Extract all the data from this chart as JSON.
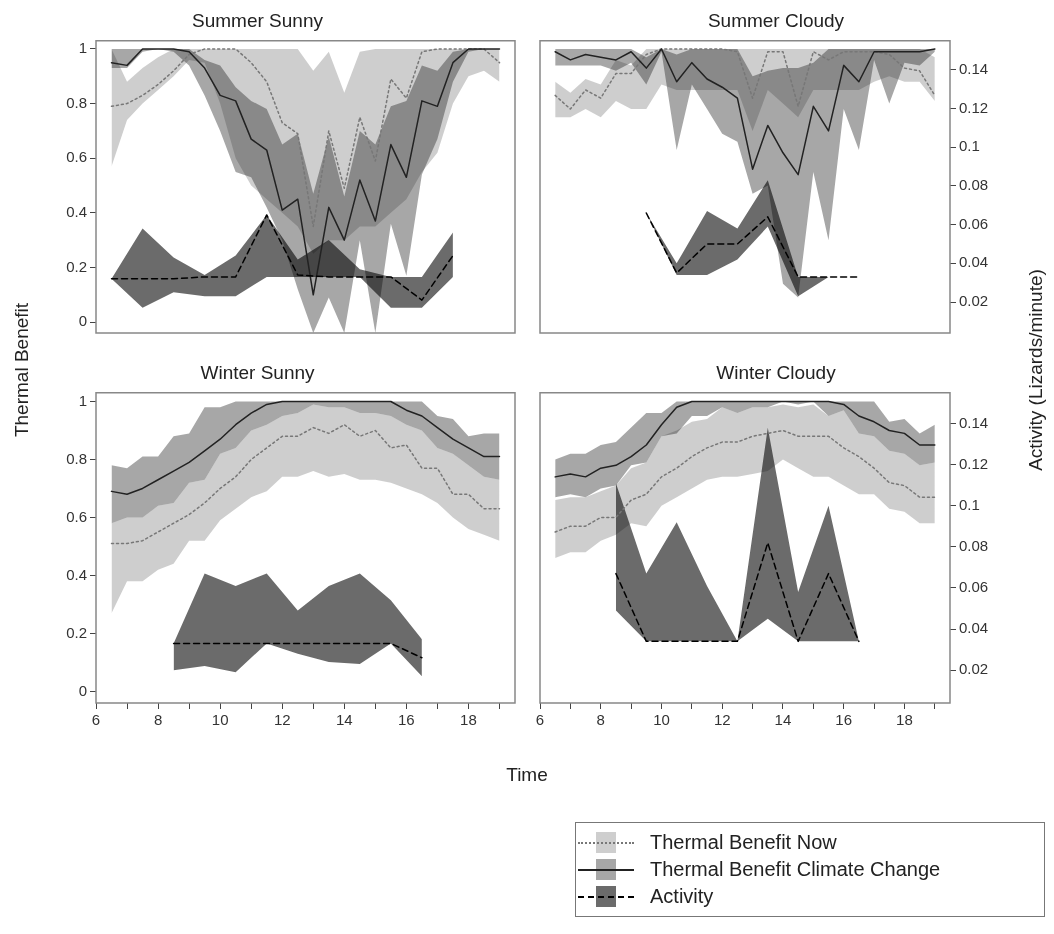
{
  "chart_data": [
    {
      "type": "line",
      "title": "Summer Sunny",
      "ylabel": "Thermal Benefit",
      "tick_labels": "y",
      "x": [
        6.5,
        7,
        7.5,
        8,
        8.5,
        9,
        9.5,
        10,
        10.5,
        11,
        11.5,
        12,
        12.5,
        13,
        13.5,
        14,
        14.5,
        15,
        15.5,
        16,
        16.5,
        17,
        17.5,
        18,
        18.5,
        19
      ],
      "xlim": [
        6,
        19.5
      ],
      "ylim": [
        -0.04,
        1.03
      ],
      "yticks": [
        0,
        0.2,
        0.4,
        0.6,
        0.8,
        1
      ],
      "y2lim": [
        0.004,
        0.155
      ],
      "series": [
        {
          "color": "#777777",
          "line_style": "dotted",
          "values": [
            0.79,
            0.8,
            0.83,
            0.87,
            0.92,
            0.98,
            1,
            1,
            1,
            0.95,
            0.88,
            0.73,
            0.69,
            0.35,
            0.7,
            0.49,
            0.75,
            0.59,
            0.89,
            0.82,
            0.99,
            1,
            1,
            1,
            1,
            0.95
          ],
          "lower": [
            0.57,
            0.74,
            0.8,
            0.85,
            0.9,
            0.96,
            0.95,
            0.8,
            0.6,
            0.5,
            0.45,
            0.4,
            0.35,
            0.25,
            0.3,
            0.3,
            0.35,
            0.35,
            0.4,
            0.45,
            0.55,
            0.62,
            0.8,
            0.9,
            0.92,
            0.88
          ],
          "upper": [
            1,
            0.88,
            0.93,
            0.97,
            1,
            1,
            1,
            1,
            1,
            1,
            1,
            1,
            1,
            0.92,
            0.99,
            0.84,
            0.99,
            1,
            1,
            1,
            1,
            1,
            1,
            1,
            1,
            1
          ]
        },
        {
          "color": "#222222",
          "line_style": "solid",
          "values": [
            0.95,
            0.94,
            1,
            1,
            1,
            0.99,
            0.93,
            0.83,
            0.81,
            0.67,
            0.63,
            0.41,
            0.45,
            0.1,
            0.42,
            0.3,
            0.52,
            0.37,
            0.65,
            0.53,
            0.81,
            0.79,
            0.95,
            1,
            1,
            1
          ],
          "lower": [
            0.93,
            0.93,
            0.99,
            1,
            0.99,
            0.94,
            0.83,
            0.7,
            0.55,
            0.53,
            0.42,
            0.3,
            0.12,
            -0.04,
            0.09,
            -0.04,
            0.3,
            -0.04,
            0.36,
            0.17,
            0.54,
            0.67,
            0.88,
            0.99,
            1,
            1
          ],
          "upper": [
            1,
            1,
            1,
            1,
            1,
            1,
            0.96,
            0.94,
            0.86,
            0.81,
            0.78,
            0.65,
            0.69,
            0.47,
            0.68,
            0.46,
            0.7,
            0.65,
            0.79,
            0.81,
            0.94,
            0.92,
            0.99,
            1,
            1,
            1
          ]
        },
        {
          "color": "#000000",
          "line_style": "dashed",
          "axis": "y2",
          "x": [
            6.5,
            7.5,
            8.5,
            9.5,
            10.5,
            11.5,
            12.5,
            13.5,
            14.5,
            15.5,
            16.5,
            17.5
          ],
          "values": [
            0.032,
            0.032,
            0.032,
            0.033,
            0.033,
            0.065,
            0.034,
            0.033,
            0.033,
            0.033,
            0.021,
            0.044
          ],
          "lower": [
            0.032,
            0.017,
            0.025,
            0.023,
            0.023,
            0.033,
            0.033,
            0.033,
            0.033,
            0.017,
            0.017,
            0.033
          ],
          "upper": [
            0.032,
            0.058,
            0.043,
            0.034,
            0.044,
            0.065,
            0.042,
            0.052,
            0.037,
            0.033,
            0.033,
            0.056
          ]
        }
      ]
    },
    {
      "type": "line",
      "title": "Summer Cloudy",
      "y2label": "Activity (Lizards/minute)",
      "tick_labels": "y2",
      "x": [
        6.5,
        7,
        7.5,
        8,
        8.5,
        9,
        9.5,
        10,
        10.5,
        11,
        11.5,
        12,
        12.5,
        13,
        13.5,
        14,
        14.5,
        15,
        15.5,
        16,
        16.5,
        17,
        17.5,
        18,
        18.5,
        19
      ],
      "xlim": [
        6,
        19.5
      ],
      "ylim": [
        -0.04,
        1.03
      ],
      "y2lim": [
        0.004,
        0.155
      ],
      "y2ticks": [
        0.02,
        0.04,
        0.06,
        0.08,
        0.1,
        0.12,
        0.14
      ],
      "series": [
        {
          "color": "#777777",
          "line_style": "dotted",
          "values": [
            0.83,
            0.78,
            0.85,
            0.82,
            0.91,
            0.91,
            0.98,
            1,
            1,
            1,
            1,
            1,
            0.99,
            0.82,
            0.99,
            0.99,
            0.79,
            0.99,
            0.96,
            0.99,
            0.99,
            0.99,
            0.98,
            0.93,
            0.92,
            0.83
          ],
          "lower": [
            0.75,
            0.75,
            0.78,
            0.75,
            0.81,
            0.78,
            0.78,
            0.87,
            0.85,
            0.85,
            0.85,
            0.85,
            0.85,
            0.7,
            0.85,
            0.8,
            0.75,
            0.85,
            0.85,
            0.85,
            0.85,
            0.88,
            0.9,
            0.88,
            0.88,
            0.81
          ],
          "upper": [
            0.88,
            0.84,
            0.89,
            0.87,
            0.96,
            0.94,
            1,
            1,
            1,
            1,
            1,
            1,
            1,
            1,
            1,
            1,
            1,
            1,
            1,
            1,
            1,
            1,
            1,
            1,
            1,
            0.97
          ]
        },
        {
          "color": "#222222",
          "line_style": "solid",
          "values": [
            0.99,
            0.96,
            0.98,
            0.97,
            0.96,
            0.99,
            0.93,
            1,
            0.88,
            0.95,
            0.89,
            0.86,
            0.82,
            0.56,
            0.72,
            0.62,
            0.54,
            0.79,
            0.7,
            0.94,
            0.88,
            0.99,
            0.99,
            0.99,
            0.99,
            1
          ],
          "lower": [
            0.94,
            0.94,
            0.94,
            0.94,
            0.92,
            0.95,
            0.87,
            0.99,
            0.63,
            0.87,
            0.78,
            0.69,
            0.66,
            0.47,
            0.5,
            0.14,
            0.09,
            0.55,
            0.3,
            0.78,
            0.63,
            0.96,
            0.8,
            0.95,
            0.94,
            0.99
          ],
          "upper": [
            1,
            1,
            1,
            1,
            1,
            1,
            0.97,
            1,
            0.98,
            1,
            1,
            1,
            1,
            0.9,
            0.92,
            0.93,
            0.93,
            0.95,
            1,
            1,
            1,
            1,
            1,
            1,
            1,
            1
          ]
        },
        {
          "color": "#000000",
          "line_style": "dashed",
          "axis": "y2",
          "x": [
            9.5,
            10.5,
            11.5,
            12.5,
            13.5,
            14.5,
            15.5,
            16.5
          ],
          "values": [
            0.066,
            0.035,
            0.05,
            0.05,
            0.064,
            0.033,
            0.033,
            0.033
          ],
          "lower": [
            0.066,
            0.034,
            0.034,
            0.042,
            0.059,
            0.023,
            0.033,
            0.033
          ],
          "upper": [
            0.066,
            0.04,
            0.067,
            0.058,
            0.083,
            0.033,
            0.033,
            0.033
          ]
        }
      ]
    },
    {
      "type": "line",
      "title": "Winter Sunny",
      "xlabel": "Time",
      "tick_labels": "xy",
      "x": [
        6.5,
        7,
        7.5,
        8,
        8.5,
        9,
        9.5,
        10,
        10.5,
        11,
        11.5,
        12,
        12.5,
        13,
        13.5,
        14,
        14.5,
        15,
        15.5,
        16,
        16.5,
        17,
        17.5,
        18,
        18.5,
        19
      ],
      "xlim": [
        6,
        19.5
      ],
      "xticks": [
        6,
        {
          "value": 7,
          "label": null
        },
        8,
        {
          "value": 9,
          "label": null
        },
        10,
        {
          "value": 11,
          "label": null
        },
        12,
        {
          "value": 13,
          "label": null
        },
        14,
        {
          "value": 15,
          "label": null
        },
        16,
        {
          "value": 17,
          "label": null
        },
        18,
        {
          "value": 19,
          "label": null
        }
      ],
      "ylim": [
        -0.04,
        1.03
      ],
      "yticks": [
        0,
        0.2,
        0.4,
        0.6,
        0.8,
        1
      ],
      "y2lim": [
        0.004,
        0.155
      ],
      "series": [
        {
          "color": "#777777",
          "line_style": "dotted",
          "values": [
            0.51,
            0.51,
            0.52,
            0.55,
            0.58,
            0.61,
            0.65,
            0.7,
            0.74,
            0.8,
            0.84,
            0.88,
            0.88,
            0.91,
            0.89,
            0.92,
            0.88,
            0.9,
            0.84,
            0.85,
            0.77,
            0.77,
            0.68,
            0.68,
            0.63,
            0.63
          ],
          "lower": [
            0.27,
            0.38,
            0.38,
            0.42,
            0.44,
            0.52,
            0.52,
            0.59,
            0.63,
            0.67,
            0.69,
            0.74,
            0.74,
            0.76,
            0.74,
            0.75,
            0.73,
            0.73,
            0.72,
            0.7,
            0.68,
            0.65,
            0.6,
            0.56,
            0.54,
            0.52
          ],
          "upper": [
            0.58,
            0.6,
            0.6,
            0.64,
            0.65,
            0.72,
            0.73,
            0.82,
            0.84,
            0.9,
            0.92,
            0.95,
            0.96,
            0.99,
            0.98,
            0.98,
            0.96,
            0.96,
            0.95,
            0.92,
            0.9,
            0.84,
            0.82,
            0.78,
            0.74,
            0.73
          ]
        },
        {
          "color": "#222222",
          "line_style": "solid",
          "values": [
            0.69,
            0.68,
            0.7,
            0.73,
            0.76,
            0.79,
            0.83,
            0.87,
            0.92,
            0.96,
            0.99,
            1,
            1,
            1,
            1,
            1,
            1,
            1,
            1,
            0.97,
            0.95,
            0.91,
            0.87,
            0.84,
            0.81,
            0.81
          ],
          "lower": [
            0.58,
            0.6,
            0.6,
            0.64,
            0.65,
            0.72,
            0.73,
            0.82,
            0.84,
            0.9,
            0.92,
            0.95,
            0.96,
            0.99,
            0.98,
            0.98,
            0.96,
            0.96,
            0.95,
            0.92,
            0.9,
            0.84,
            0.82,
            0.78,
            0.74,
            0.73
          ],
          "upper": [
            0.78,
            0.77,
            0.81,
            0.81,
            0.88,
            0.89,
            0.98,
            0.98,
            1,
            1,
            1,
            1,
            1,
            1,
            1,
            1,
            1,
            1,
            1,
            1,
            1,
            0.95,
            0.94,
            0.88,
            0.89,
            0.89
          ]
        },
        {
          "color": "#000000",
          "line_style": "dashed",
          "axis": "y2",
          "x": [
            8.5,
            9.5,
            10.5,
            11.5,
            12.5,
            13.5,
            14.5,
            15.5,
            16.5
          ],
          "values": [
            0.033,
            0.033,
            0.033,
            0.033,
            0.033,
            0.033,
            0.033,
            0.033,
            0.026
          ],
          "lower": [
            0.02,
            0.022,
            0.019,
            0.033,
            0.028,
            0.024,
            0.023,
            0.033,
            0.017
          ],
          "upper": [
            0.033,
            0.067,
            0.061,
            0.067,
            0.049,
            0.061,
            0.067,
            0.054,
            0.035
          ]
        }
      ]
    },
    {
      "type": "line",
      "title": "Winter Cloudy",
      "tick_labels": "xy2",
      "legend": "bottom right",
      "x": [
        6.5,
        7,
        7.5,
        8,
        8.5,
        9,
        9.5,
        10,
        10.5,
        11,
        11.5,
        12,
        12.5,
        13,
        13.5,
        14,
        14.5,
        15,
        15.5,
        16,
        16.5,
        17,
        17.5,
        18,
        18.5,
        19
      ],
      "xlim": [
        6,
        19.5
      ],
      "xticks": [
        6,
        {
          "value": 7,
          "label": null
        },
        8,
        {
          "value": 9,
          "label": null
        },
        10,
        {
          "value": 11,
          "label": null
        },
        12,
        {
          "value": 13,
          "label": null
        },
        14,
        {
          "value": 15,
          "label": null
        },
        16,
        {
          "value": 17,
          "label": null
        },
        18,
        {
          "value": 19,
          "label": null
        }
      ],
      "ylim": [
        -0.04,
        1.03
      ],
      "y2lim": [
        0.004,
        0.155
      ],
      "y2ticks": [
        0.02,
        0.04,
        0.06,
        0.08,
        0.1,
        0.12,
        0.14
      ],
      "series": [
        {
          "name": "Thermal Benefit Now",
          "color": "#777777",
          "line_style": "dotted",
          "values": [
            0.55,
            0.57,
            0.57,
            0.6,
            0.6,
            0.66,
            0.68,
            0.74,
            0.77,
            0.81,
            0.84,
            0.86,
            0.86,
            0.88,
            0.89,
            0.9,
            0.88,
            0.88,
            0.88,
            0.84,
            0.81,
            0.77,
            0.72,
            0.71,
            0.67,
            0.67
          ],
          "lower": [
            0.46,
            0.48,
            0.48,
            0.52,
            0.54,
            0.58,
            0.57,
            0.64,
            0.67,
            0.7,
            0.73,
            0.74,
            0.74,
            0.75,
            0.76,
            0.8,
            0.77,
            0.74,
            0.74,
            0.71,
            0.68,
            0.68,
            0.63,
            0.62,
            0.58,
            0.58
          ],
          "upper": [
            0.66,
            0.67,
            0.67,
            0.69,
            0.71,
            0.77,
            0.79,
            0.88,
            0.9,
            0.93,
            0.94,
            0.98,
            0.96,
            0.98,
            0.98,
            0.99,
            0.98,
            0.99,
            0.95,
            0.97,
            0.89,
            0.88,
            0.83,
            0.82,
            0.78,
            0.79
          ]
        },
        {
          "name": "Thermal Benefit Climate Change",
          "color": "#222222",
          "line_style": "solid",
          "values": [
            0.74,
            0.75,
            0.74,
            0.77,
            0.78,
            0.81,
            0.85,
            0.92,
            0.98,
            1,
            1,
            1,
            1,
            1,
            1,
            1,
            1,
            1,
            1,
            0.99,
            0.95,
            0.93,
            0.9,
            0.89,
            0.85,
            0.85
          ],
          "lower": [
            0.67,
            0.68,
            0.67,
            0.7,
            0.71,
            0.78,
            0.79,
            0.88,
            0.89,
            0.95,
            0.95,
            0.98,
            0.96,
            0.98,
            0.98,
            1,
            0.99,
            1,
            0.95,
            0.97,
            0.89,
            0.88,
            0.83,
            0.82,
            0.78,
            0.79
          ],
          "upper": [
            0.8,
            0.82,
            0.82,
            0.85,
            0.86,
            0.91,
            0.96,
            0.96,
            1,
            1,
            1,
            1,
            1,
            1,
            1,
            1,
            1,
            1,
            1,
            1,
            1,
            1,
            0.93,
            0.94,
            0.89,
            0.92
          ]
        },
        {
          "name": "Activity",
          "color": "#000000",
          "line_style": "dashed",
          "axis": "y2",
          "x": [
            8.5,
            9.5,
            10.5,
            11.5,
            12.5,
            13.5,
            14.5,
            15.5,
            16.5
          ],
          "values": [
            0.067,
            0.034,
            0.034,
            0.034,
            0.034,
            0.082,
            0.034,
            0.067,
            0.034
          ],
          "lower": [
            0.049,
            0.034,
            0.034,
            0.034,
            0.034,
            0.045,
            0.034,
            0.034,
            0.034
          ],
          "upper": [
            0.111,
            0.067,
            0.092,
            0.061,
            0.034,
            0.138,
            0.058,
            0.1,
            0.034
          ]
        }
      ]
    }
  ]
}
